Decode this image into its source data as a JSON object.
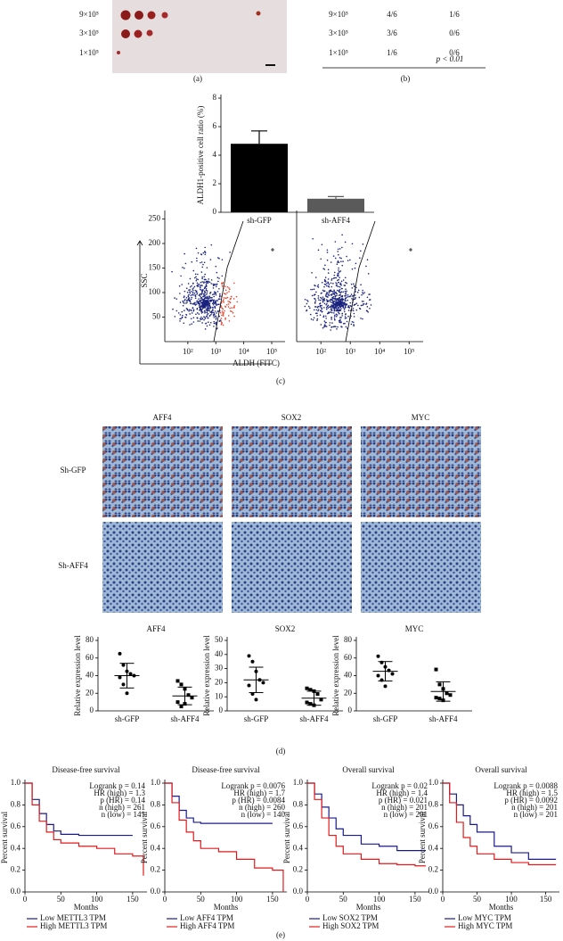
{
  "panel_labels": [
    "(a)",
    "(b)",
    "(c)",
    "(d)",
    "(e)"
  ],
  "colony_assay": {
    "dilutions": [
      "9×10⁵",
      "3×10⁵",
      "1×10⁵"
    ]
  },
  "dilution_table": {
    "rows": [
      [
        "9×10⁵",
        "4/6",
        "1/6"
      ],
      [
        "3×10⁵",
        "3/6",
        "0/6"
      ],
      [
        "1×10⁵",
        "1/6",
        "0/6"
      ]
    ],
    "p_value": "p < 0.01"
  },
  "ihc": {
    "columns": [
      "AFF4",
      "SOX2",
      "MYC"
    ],
    "rows": [
      "Sh-GFP",
      "Sh-AFF4"
    ]
  },
  "chart_data": [
    {
      "type": "bar",
      "ylabel": "ALDH1-positive cell ratio (%)",
      "categories": [
        "sh-GFP",
        "sh-AFF4"
      ],
      "values": [
        4.8,
        0.95
      ],
      "errors": [
        0.9,
        0.15
      ],
      "colors": [
        "#000000",
        "#5a5a5a"
      ],
      "ylim": [
        0,
        8
      ],
      "yticks": [
        0,
        2,
        4,
        6,
        8
      ]
    },
    {
      "type": "flow",
      "ylabel": "SSC",
      "xlabel": "ALDH (FITC)",
      "log_x": true,
      "xlim": [
        15,
        300000
      ],
      "ylim": [
        0,
        260
      ],
      "yticks": [
        50,
        100,
        150,
        200,
        250
      ],
      "xticks": [
        {
          "value": 100,
          "label": "10²"
        },
        {
          "value": 1000,
          "label": "10³"
        },
        {
          "value": 10000,
          "label": "10⁴"
        },
        {
          "value": 100000,
          "label": "10⁵"
        }
      ]
    },
    {
      "type": "flow",
      "log_x": true,
      "xlim": [
        15,
        300000
      ],
      "ylim": [
        0,
        260
      ],
      "xticks": [
        {
          "value": 100,
          "label": "10²"
        },
        {
          "value": 1000,
          "label": "10³"
        },
        {
          "value": 10000,
          "label": "10⁴"
        },
        {
          "value": 100000,
          "label": "10⁵"
        }
      ]
    },
    {
      "type": "dot",
      "title": "AFF4",
      "ylabel": "Relative expression level",
      "categories": [
        "sh-GFP",
        "sh-AFF4"
      ],
      "groups": [
        {
          "values": [
            65,
            52,
            45,
            42,
            40,
            38,
            30,
            20
          ],
          "mean": 40,
          "sd": 14
        },
        {
          "values": [
            34,
            30,
            25,
            18,
            15,
            10,
            5,
            8
          ],
          "mean": 17,
          "sd": 10
        }
      ],
      "ylim": [
        0,
        80
      ],
      "yticks": [
        0,
        20,
        40,
        60,
        80
      ]
    },
    {
      "type": "dot",
      "title": "SOX2",
      "ylabel": "Relative expression level",
      "categories": [
        "sh-GFP",
        "sh-AFF4"
      ],
      "groups": [
        {
          "values": [
            39,
            35,
            28,
            22,
            20,
            18,
            12,
            8
          ],
          "mean": 22,
          "sd": 9
        },
        {
          "values": [
            16,
            15,
            14,
            12,
            8,
            6,
            5,
            4
          ],
          "mean": 9,
          "sd": 5
        }
      ],
      "ylim": [
        0,
        50
      ],
      "yticks": [
        0,
        10,
        20,
        30,
        40,
        50
      ]
    },
    {
      "type": "dot",
      "title": "MYC",
      "ylabel": "Relative expression level",
      "categories": [
        "sh-GFP",
        "sh-AFF4"
      ],
      "groups": [
        {
          "values": [
            62,
            55,
            50,
            46,
            42,
            40,
            35,
            28
          ],
          "mean": 45,
          "sd": 11
        },
        {
          "values": [
            47,
            30,
            25,
            20,
            18,
            15,
            14,
            12
          ],
          "mean": 22,
          "sd": 11
        }
      ],
      "ylim": [
        0,
        80
      ],
      "yticks": [
        0,
        20,
        40,
        60,
        80
      ]
    },
    {
      "type": "line",
      "step": true,
      "title": "Disease-free survival",
      "xlabel": "Months",
      "ylabel": "Percent survival",
      "x": [
        0,
        10,
        20,
        30,
        40,
        50,
        75,
        100,
        125,
        150,
        165
      ],
      "series": [
        {
          "name": "Low METTL3 TPM",
          "color": "#1a1a8c",
          "values": [
            1,
            0.85,
            0.72,
            0.62,
            0.56,
            0.53,
            0.52,
            0.52,
            0.52,
            0.52,
            null
          ]
        },
        {
          "name": "High METTL3 TPM",
          "color": "#e31a1c",
          "values": [
            1,
            0.8,
            0.65,
            0.55,
            0.48,
            0.45,
            0.42,
            0.4,
            0.35,
            0.33,
            0.15
          ]
        }
      ],
      "annotations": [
        "Logrank p = 0.14",
        "HR (high) = 1.3",
        "p (HR) = 0.14",
        "n (high) = 261",
        "n (low) = 141"
      ],
      "xlim": [
        0,
        170
      ],
      "xticks": [
        0,
        50,
        100,
        150
      ],
      "ylim": [
        0,
        1
      ],
      "yticks": [
        {
          "value": 0,
          "label": "0.0"
        },
        0.2,
        0.4,
        0.6,
        0.8,
        {
          "value": 1,
          "label": "1.0"
        }
      ]
    },
    {
      "type": "line",
      "step": true,
      "title": "Disease-free survival",
      "xlabel": "Months",
      "ylabel": "Percent survival",
      "x": [
        0,
        10,
        20,
        30,
        40,
        50,
        75,
        100,
        125,
        150,
        165
      ],
      "series": [
        {
          "name": "Low AFF4 TPM",
          "color": "#1a1a8c",
          "values": [
            1,
            0.88,
            0.75,
            0.68,
            0.64,
            0.63,
            0.63,
            0.63,
            0.63,
            0.63,
            null
          ]
        },
        {
          "name": "High AFF4 TPM",
          "color": "#e31a1c",
          "values": [
            1,
            0.82,
            0.66,
            0.55,
            0.47,
            0.4,
            0.37,
            0.3,
            0.22,
            0.2,
            0
          ]
        }
      ],
      "annotations": [
        "Logrank p = 0.0076",
        "HR (high) = 1.7",
        "p (HR) = 0.0084",
        "n (high) = 260",
        "n (low) = 140"
      ],
      "xlim": [
        0,
        170
      ],
      "xticks": [
        0,
        50,
        100,
        150
      ],
      "ylim": [
        0,
        1
      ],
      "yticks": [
        {
          "value": 0,
          "label": "0.0"
        },
        0.2,
        0.4,
        0.6,
        0.8,
        {
          "value": 1,
          "label": "1.0"
        }
      ]
    },
    {
      "type": "line",
      "step": true,
      "title": "Overall survival",
      "xlabel": "Months",
      "ylabel": "Percent survival",
      "x": [
        0,
        10,
        20,
        30,
        40,
        50,
        75,
        100,
        125,
        150,
        165
      ],
      "series": [
        {
          "name": "Low SOX2 TPM",
          "color": "#1a1a8c",
          "values": [
            1,
            0.9,
            0.78,
            0.68,
            0.58,
            0.52,
            0.44,
            0.42,
            0.38,
            0.38,
            0.38
          ]
        },
        {
          "name": "High SOX2 TPM",
          "color": "#e31a1c",
          "values": [
            1,
            0.85,
            0.68,
            0.52,
            0.42,
            0.35,
            0.3,
            0.26,
            0.25,
            0.24,
            0.24
          ]
        }
      ],
      "annotations": [
        "Logrank p = 0.02",
        "HR (high) = 1.4",
        "p (HR) = 0.021",
        "n (high) = 201",
        "n (low) = 201"
      ],
      "xlim": [
        0,
        170
      ],
      "xticks": [
        0,
        50,
        100,
        150
      ],
      "ylim": [
        0,
        1
      ],
      "yticks": [
        {
          "value": 0,
          "label": "0.0"
        },
        0.2,
        0.4,
        0.6,
        0.8,
        {
          "value": 1,
          "label": "1.0"
        }
      ]
    },
    {
      "type": "line",
      "step": true,
      "title": "Overall survival",
      "xlabel": "Months",
      "ylabel": "Percent survival",
      "x": [
        0,
        10,
        20,
        30,
        40,
        50,
        75,
        100,
        125,
        150,
        165
      ],
      "series": [
        {
          "name": "Low MYC TPM",
          "color": "#1a1a8c",
          "values": [
            1,
            0.9,
            0.8,
            0.7,
            0.62,
            0.55,
            0.42,
            0.36,
            0.3,
            0.3,
            0.3
          ]
        },
        {
          "name": "High MYC TPM",
          "color": "#e31a1c",
          "values": [
            1,
            0.82,
            0.64,
            0.5,
            0.42,
            0.35,
            0.3,
            0.27,
            0.25,
            0.25,
            0.25
          ]
        }
      ],
      "annotations": [
        "Logrank p = 0.0088",
        "HR (high) = 1.5",
        "p (HR) = 0.0092",
        "n (high) = 201",
        "n (low) = 201"
      ],
      "xlim": [
        0,
        170
      ],
      "xticks": [
        0,
        50,
        100,
        150
      ],
      "ylim": [
        0,
        1
      ],
      "yticks": [
        {
          "value": 0,
          "label": "0.0"
        },
        0.2,
        0.4,
        0.6,
        0.8,
        {
          "value": 1,
          "label": "1.0"
        }
      ]
    }
  ]
}
